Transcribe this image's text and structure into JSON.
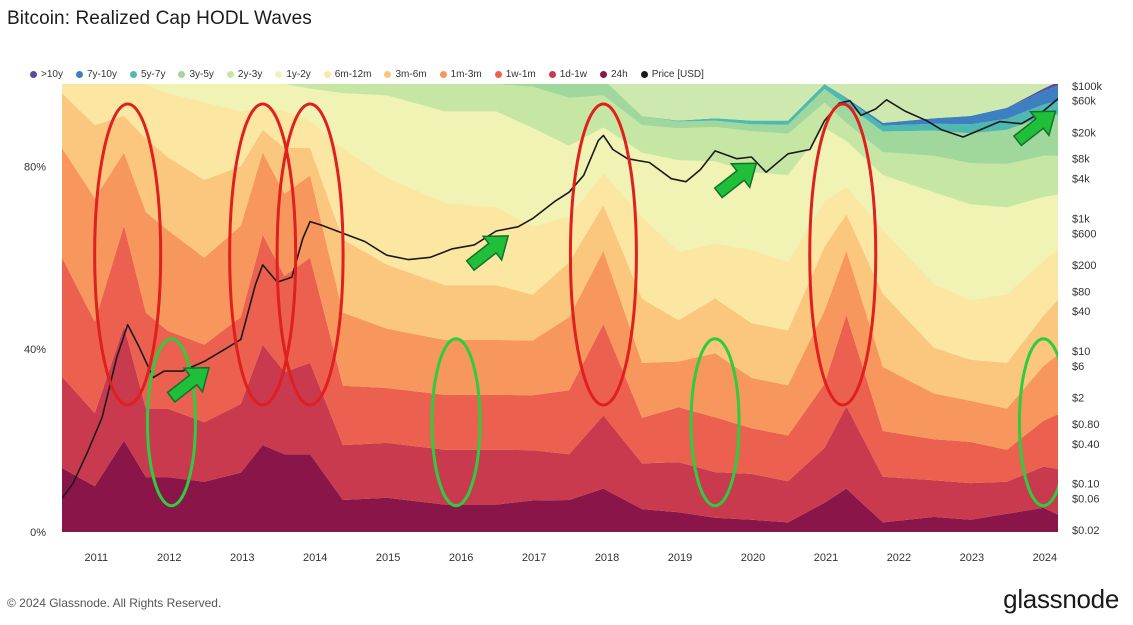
{
  "title": "Bitcoin: Realized Cap HODL Waves",
  "footer": {
    "copyright": "© 2024 Glassnode. All Rights Reserved.",
    "brand": "glassnode"
  },
  "chart_data": {
    "type": "area",
    "stacked": true,
    "normalized_to_100": true,
    "title": "Bitcoin: Realized Cap HODL Waves",
    "x_ticks": [
      "2011",
      "2012",
      "2013",
      "2014",
      "2015",
      "2016",
      "2017",
      "2018",
      "2019",
      "2020",
      "2021",
      "2022",
      "2023",
      "2024"
    ],
    "x_range": [
      2010.55,
      2024.2
    ],
    "y_left_ticks": [
      {
        "label": "0%",
        "value": 0
      },
      {
        "label": "40%",
        "value": 40
      },
      {
        "label": "80%",
        "value": 80
      }
    ],
    "y_left_range": [
      0,
      98
    ],
    "y_right_scale": "log",
    "y_right_range": [
      0.02,
      100000
    ],
    "y_right_ticks": [
      "$100k",
      "$60k",
      "$20k",
      "$8k",
      "$4k",
      "$1k",
      "$600",
      "$200",
      "$80",
      "$40",
      "$10",
      "$6",
      "$2",
      "$0.80",
      "$0.40",
      "$0.10",
      "$0.06",
      "$0.02"
    ],
    "legend_position": "top",
    "legend": [
      {
        "label": ">10y",
        "color": "#5b4b9e"
      },
      {
        "label": "7y-10y",
        "color": "#3d7fc1"
      },
      {
        "label": "5y-7y",
        "color": "#4db9b0"
      },
      {
        "label": "3y-5y",
        "color": "#9fd79c"
      },
      {
        "label": "2y-3y",
        "color": "#c6e6a4"
      },
      {
        "label": "1y-2y",
        "color": "#f0f3b4"
      },
      {
        "label": "6m-12m",
        "color": "#fbe7a2"
      },
      {
        "label": "3m-6m",
        "color": "#fbc77f"
      },
      {
        "label": "1m-3m",
        "color": "#f8975d"
      },
      {
        "label": "1w-1m",
        "color": "#ec604f"
      },
      {
        "label": "1d-1w",
        "color": "#c93a4f"
      },
      {
        "label": "24h",
        "color": "#8a1649"
      },
      {
        "label": "Price [USD]",
        "color": "#1a1a1a"
      }
    ],
    "x": [
      2010.55,
      2011.0,
      2011.4,
      2011.7,
      2012.0,
      2012.5,
      2013.0,
      2013.3,
      2013.6,
      2013.95,
      2014.4,
      2015.0,
      2015.8,
      2016.5,
      2017.0,
      2017.5,
      2017.97,
      2018.5,
      2019.0,
      2019.5,
      2020.0,
      2020.5,
      2021.0,
      2021.3,
      2021.8,
      2022.5,
      2023.0,
      2023.5,
      2024.0,
      2024.2
    ],
    "series": [
      {
        "name": ">10y",
        "values": [
          0,
          0,
          0,
          0,
          0,
          0,
          0,
          0,
          0,
          0,
          0,
          0,
          0,
          0,
          0,
          0,
          0,
          0,
          0,
          0,
          0,
          0,
          0,
          0,
          0,
          0,
          0,
          0,
          0.5,
          0.8
        ]
      },
      {
        "name": "7y-10y",
        "values": [
          0,
          0,
          0,
          0,
          0,
          0,
          0,
          0,
          0,
          0,
          0,
          0,
          0,
          0,
          0,
          0,
          0,
          0,
          0,
          0,
          0,
          0,
          0,
          0.2,
          0.6,
          1.2,
          1.8,
          2.4,
          3.0,
          3.4
        ]
      },
      {
        "name": "5y-7y",
        "values": [
          0,
          0,
          0,
          0,
          0,
          0,
          0,
          0,
          0,
          0,
          0,
          0,
          0,
          0,
          0,
          0,
          0,
          0,
          0.2,
          0.5,
          0.8,
          0.9,
          1.1,
          1.3,
          1.3,
          1.5,
          2.0,
          2.4,
          2.7,
          3.0
        ]
      },
      {
        "name": "3y-5y",
        "values": [
          0,
          0,
          0,
          0,
          0,
          0,
          0,
          0,
          0,
          0,
          0,
          0,
          0,
          0,
          0.6,
          3.0,
          3.5,
          2.0,
          1.5,
          1.4,
          1.5,
          2.0,
          3.0,
          4.0,
          4.5,
          5.5,
          6.5,
          7.5,
          8.5,
          9.0
        ]
      },
      {
        "name": "2y-3y",
        "values": [
          0,
          0,
          0,
          0,
          0,
          0,
          0.5,
          1.0,
          1.5,
          2.0,
          3.0,
          3.5,
          6.0,
          6.0,
          9.0,
          10.5,
          7.0,
          6.0,
          7.0,
          7.5,
          9.0,
          9.0,
          5.5,
          4.0,
          5.0,
          8.0,
          9.0,
          9.5,
          9.0,
          8.5
        ]
      },
      {
        "name": "1y-2y",
        "values": [
          0,
          1.0,
          1.5,
          2.0,
          3.5,
          5.0,
          7.0,
          5.5,
          6.0,
          7.0,
          12.0,
          18.0,
          20.0,
          21.0,
          21.5,
          15.5,
          10.0,
          14.0,
          20.0,
          18.0,
          17.0,
          19.0,
          16.0,
          10.0,
          12.0,
          20.0,
          21.0,
          19.0,
          14.0,
          12.0
        ]
      },
      {
        "name": "6m-12m",
        "values": [
          4,
          10,
          7,
          12,
          14,
          17,
          12,
          5,
          8,
          6,
          20,
          19,
          18,
          17,
          15,
          10,
          7,
          18,
          15,
          12,
          16,
          15,
          10,
          6,
          14,
          14,
          13,
          15,
          12,
          11
        ]
      },
      {
        "name": "3m-6m",
        "values": [
          12,
          16,
          8,
          16,
          16,
          17,
          13,
          5,
          10,
          6,
          16,
          14,
          12,
          12,
          10,
          12,
          10,
          14,
          9,
          12,
          12,
          12,
          14,
          8,
          16,
          10,
          9,
          10,
          11,
          12
        ]
      },
      {
        "name": "1m-3m",
        "values": [
          24,
          27,
          16,
          22,
          22,
          19,
          20,
          18,
          18,
          18,
          16,
          13,
          12,
          12,
          12,
          16,
          16,
          12,
          10,
          14,
          11,
          11,
          16,
          14,
          14,
          10,
          9,
          9,
          12,
          13
        ]
      },
      {
        "name": "1w-1m",
        "values": [
          26,
          20,
          22,
          21,
          17,
          17,
          19,
          24,
          21,
          23,
          13,
          12,
          12,
          12,
          12,
          14,
          20,
          10,
          12,
          12,
          10,
          10,
          14,
          20,
          10,
          9,
          9,
          7,
          10,
          12
        ]
      },
      {
        "name": "1d-1w",
        "values": [
          20,
          16,
          25,
          15,
          15,
          13,
          15,
          22,
          18,
          20,
          12,
          12,
          12,
          12,
          11,
          10,
          16,
          10,
          11,
          10,
          10,
          9,
          12,
          18,
          10,
          8,
          8,
          7,
          9,
          10
        ]
      },
      {
        "name": "24h",
        "values": [
          14,
          10,
          20,
          12,
          12,
          11,
          13,
          19,
          17,
          17,
          7,
          7.5,
          6,
          6,
          6.9,
          7.0,
          9.5,
          5.0,
          4.3,
          3.1,
          2.7,
          2.1,
          6.4,
          9.5,
          2.1,
          3.3,
          2.7,
          4.0,
          5.3,
          3.8
        ]
      }
    ],
    "price": {
      "name": "Price [USD]",
      "x": [
        2010.55,
        2010.7,
        2010.9,
        2011.1,
        2011.3,
        2011.45,
        2011.6,
        2011.8,
        2011.95,
        2012.2,
        2012.5,
        2012.8,
        2013.0,
        2013.2,
        2013.3,
        2013.5,
        2013.7,
        2013.85,
        2013.95,
        2014.1,
        2014.4,
        2014.7,
        2015.0,
        2015.3,
        2015.6,
        2015.9,
        2016.2,
        2016.5,
        2016.8,
        2017.0,
        2017.3,
        2017.5,
        2017.7,
        2017.9,
        2017.97,
        2018.1,
        2018.3,
        2018.6,
        2018.9,
        2019.1,
        2019.3,
        2019.5,
        2019.8,
        2020.0,
        2020.2,
        2020.5,
        2020.8,
        2021.0,
        2021.2,
        2021.35,
        2021.5,
        2021.7,
        2021.85,
        2022.1,
        2022.4,
        2022.6,
        2022.9,
        2023.1,
        2023.4,
        2023.7,
        2024.0,
        2024.2
      ],
      "y": [
        0.06,
        0.1,
        0.3,
        1.0,
        8,
        25,
        12,
        4,
        5,
        5,
        7,
        11,
        15,
        100,
        200,
        110,
        130,
        500,
        900,
        800,
        600,
        450,
        280,
        240,
        260,
        350,
        400,
        650,
        750,
        1000,
        1800,
        2500,
        4500,
        15000,
        18000,
        11000,
        8000,
        7000,
        4000,
        3600,
        5500,
        10500,
        8000,
        8500,
        5000,
        9500,
        11000,
        30000,
        55000,
        60000,
        36000,
        45000,
        62000,
        42000,
        30000,
        22000,
        17000,
        21000,
        29000,
        27000,
        42000,
        64000
      ]
    },
    "annotations": [
      {
        "shape": "ellipse",
        "color": "red",
        "at_x": 2011.45
      },
      {
        "shape": "ellipse",
        "color": "red",
        "at_x": 2013.3
      },
      {
        "shape": "ellipse",
        "color": "red",
        "at_x": 2013.95
      },
      {
        "shape": "ellipse",
        "color": "red",
        "at_x": 2017.97
      },
      {
        "shape": "ellipse",
        "color": "red",
        "at_x": 2021.25
      },
      {
        "shape": "ellipse",
        "color": "green",
        "at_x": 2012.05
      },
      {
        "shape": "ellipse",
        "color": "green",
        "at_x": 2015.95
      },
      {
        "shape": "ellipse",
        "color": "green",
        "at_x": 2019.5
      },
      {
        "shape": "ellipse",
        "color": "green",
        "at_x": 2024.0
      },
      {
        "shape": "arrow",
        "color": "green",
        "at_x": 2012.5
      },
      {
        "shape": "arrow",
        "color": "green",
        "at_x": 2016.6
      },
      {
        "shape": "arrow",
        "color": "green",
        "at_x": 2020.0
      },
      {
        "shape": "arrow",
        "color": "green",
        "at_x": 2024.1
      }
    ]
  }
}
